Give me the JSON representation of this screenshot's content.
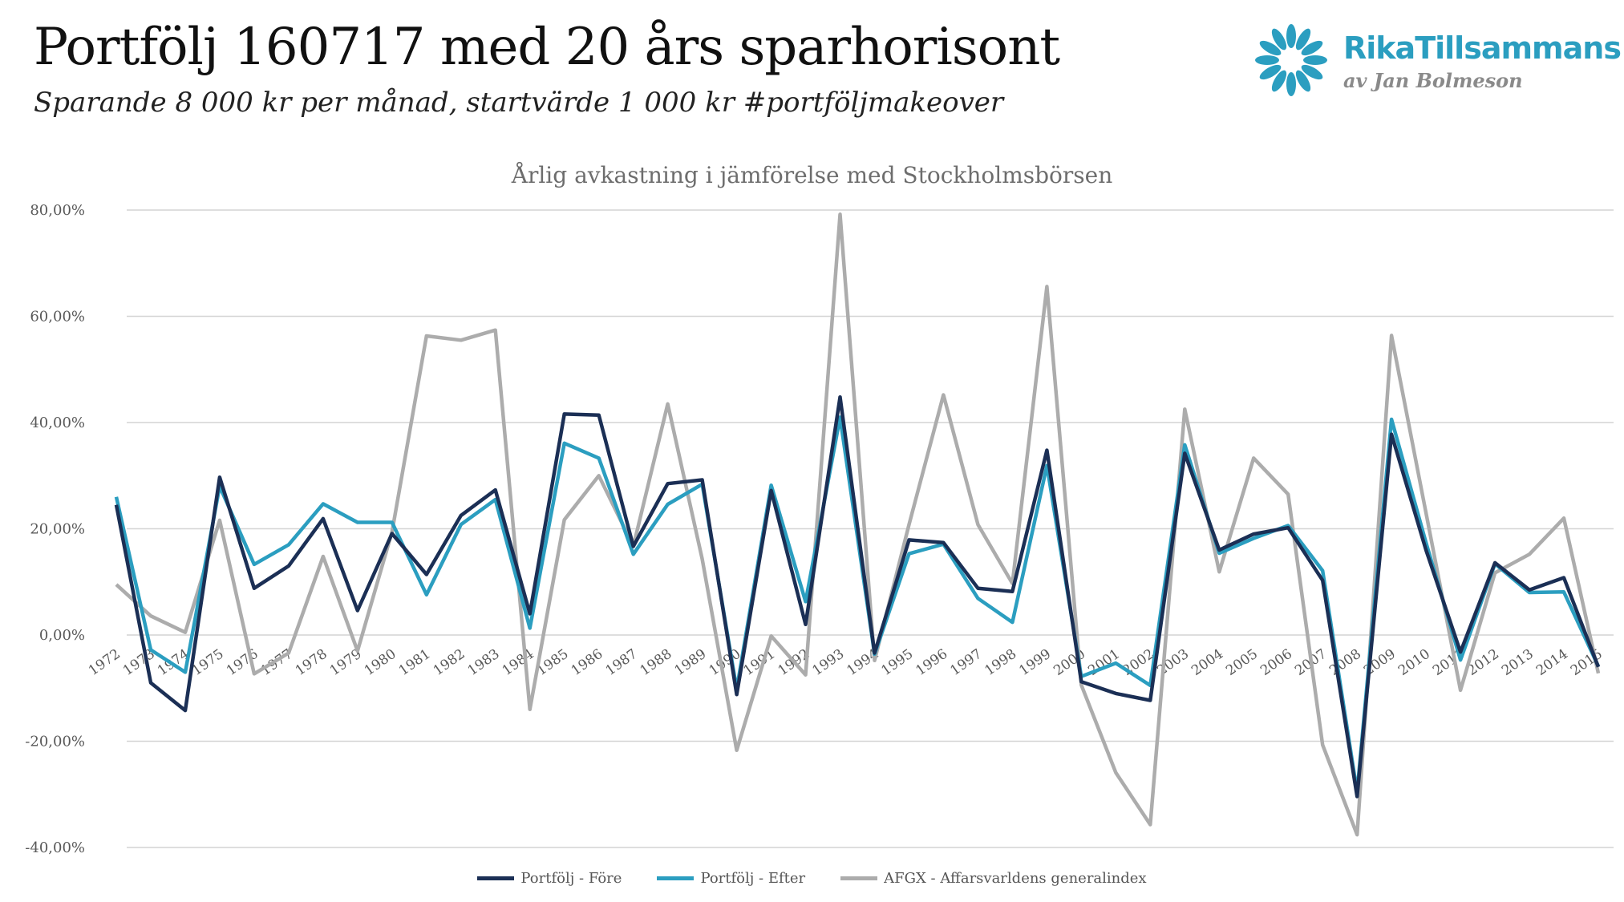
{
  "header": {
    "title": "Portfölj 160717 med 20 års sparhorisont",
    "subtitle": "Sparande 8 000 kr per månad, startvärde 1 000 kr #portföljmakeover"
  },
  "brand": {
    "name": "RikaTillsammans",
    "tagline": "av Jan Bolmeson",
    "icon": "flower-logo-icon",
    "color": "#2b9ec0"
  },
  "chart_data": {
    "type": "line",
    "title": "Årlig avkastning i jämförelse med Stockholmsbörsen",
    "xlabel": "",
    "ylabel": "",
    "ylim": [
      -40,
      80
    ],
    "y_ticks": [
      80,
      60,
      40,
      20,
      0,
      -20,
      -40
    ],
    "y_tick_labels": [
      "80,00%",
      "60,00%",
      "40,00%",
      "20,00%",
      "0,00%",
      "-20,00%",
      "-40,00%"
    ],
    "grid": true,
    "legend_position": "bottom",
    "categories": [
      "1972",
      "1973",
      "1974",
      "1975",
      "1976",
      "1977",
      "1978",
      "1979",
      "1980",
      "1981",
      "1982",
      "1983",
      "1984",
      "1985",
      "1986",
      "1987",
      "1988",
      "1989",
      "1990",
      "1991",
      "1992",
      "1993",
      "1994",
      "1995",
      "1996",
      "1997",
      "1998",
      "1999",
      "2000",
      "2001",
      "2002",
      "2003",
      "2004",
      "2005",
      "2006",
      "2007",
      "2008",
      "2009",
      "2010",
      "2011",
      "2012",
      "2013",
      "2014",
      "2015"
    ],
    "series": [
      {
        "name": "Portfölj - Före",
        "color": "#1b2f55",
        "values": [
          24.5,
          -9,
          -14.2,
          29.7,
          8.8,
          13,
          21.9,
          4.6,
          19.1,
          11.4,
          22.5,
          27.3,
          4,
          41.6,
          41.4,
          16.7,
          28.5,
          29.2,
          -11.2,
          27.2,
          2,
          44.8,
          -3.4,
          17.9,
          17.4,
          8.8,
          8.2,
          34.8,
          -8.8,
          -11,
          -12.3,
          34.2,
          16,
          19,
          20.2,
          10.3,
          -30.4,
          37.8,
          16,
          -3.2,
          13.6,
          8.5,
          10.8,
          -6
        ]
      },
      {
        "name": "Portfölj - Efter",
        "color": "#2b9ec0",
        "values": [
          26,
          -2.8,
          -7,
          28,
          13.3,
          17,
          24.7,
          21.2,
          21.2,
          7.6,
          20.8,
          25.5,
          1.3,
          36.1,
          33.3,
          15.2,
          24.6,
          28.4,
          -10.2,
          28.2,
          6.3,
          41,
          -3.6,
          15.3,
          17.1,
          6.9,
          2.4,
          31.9,
          -7.8,
          -5.3,
          -9.5,
          35.8,
          15.4,
          18.2,
          20.6,
          12.1,
          -29.6,
          40.6,
          17.4,
          -4.7,
          13.4,
          8,
          8.1,
          -5.9
        ]
      },
      {
        "name": "AFGX - Affarsvarldens generalindex",
        "color": "#acacac",
        "values": [
          9.5,
          3.6,
          0.5,
          21.6,
          -7.3,
          -3.4,
          14.8,
          -3,
          19.4,
          56.3,
          55.5,
          57.4,
          -14,
          21.7,
          30,
          16.7,
          43.5,
          14.3,
          -21.7,
          -0.2,
          -7.5,
          79.2,
          -4.8,
          20.8,
          45.2,
          20.8,
          9.7,
          65.6,
          -9.4,
          -25.9,
          -35.7,
          42.5,
          11.9,
          33.3,
          26.5,
          -20.7,
          -37.6,
          56.4,
          23,
          -10.4,
          11.7,
          15.2,
          22,
          -7.2
        ]
      }
    ]
  }
}
